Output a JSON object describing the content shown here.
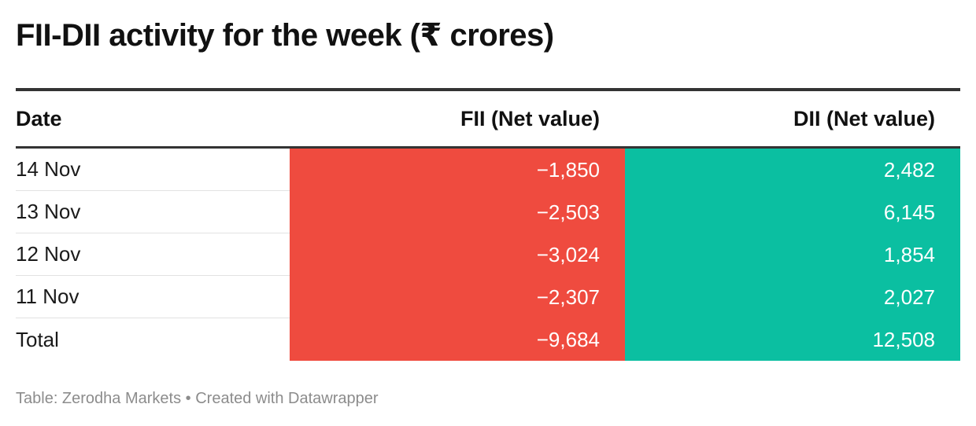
{
  "title": "FII-DII activity for the week (₹ crores)",
  "footer": "Table: Zerodha Markets • Created with Datawrapper",
  "colors": {
    "fii_fill": "#ef4b3f",
    "dii_fill": "#0bbfa1"
  },
  "chart_data": {
    "type": "table",
    "columns": [
      "Date",
      "FII (Net value)",
      "DII (Net value)"
    ],
    "rows": [
      {
        "date": "14 Nov",
        "fii": "−1,850",
        "dii": "2,482"
      },
      {
        "date": "13 Nov",
        "fii": "−2,503",
        "dii": "6,145"
      },
      {
        "date": "12 Nov",
        "fii": "−3,024",
        "dii": "1,854"
      },
      {
        "date": "11 Nov",
        "fii": "−2,307",
        "dii": "2,027"
      },
      {
        "date": "Total",
        "fii": "−9,684",
        "dii": "12,508"
      }
    ]
  }
}
